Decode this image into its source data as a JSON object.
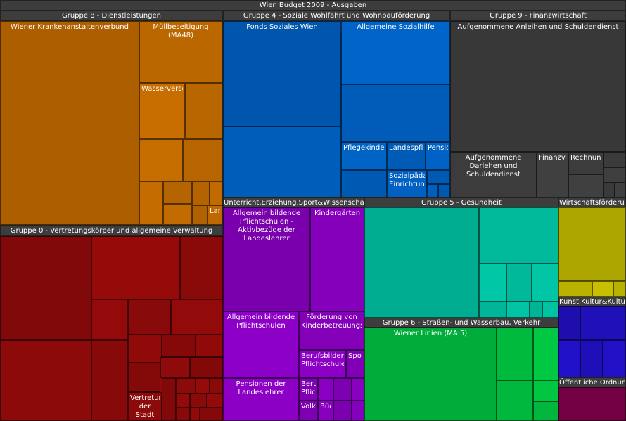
{
  "chart_data": {
    "type": "treemap",
    "title": "Wien Budget 2009 - Ausgaben",
    "groups": [
      {
        "name": "Gruppe 8 - Dienstleistungen",
        "color": "#c06a00",
        "items": [
          {
            "name": "Wiener Krankenanstaltenverbund"
          },
          {
            "name": "Müllbeseitigung (MA48)"
          },
          {
            "name": "Wasserversorgung"
          },
          {
            "name": "Landwirtschaft"
          }
        ]
      },
      {
        "name": "Gruppe 4 - Soziale Wohlfahrt und Wohnbauförderung",
        "color": "#0060c0",
        "items": [
          {
            "name": "Fonds Soziales Wien"
          },
          {
            "name": "Allgemeine Sozialhilfe"
          },
          {
            "name": "Pflegekindereinrichtungen"
          },
          {
            "name": "Landespflegegeld"
          },
          {
            "name": "Pensionen"
          },
          {
            "name": "Sozialpädagogische Einrichtungen"
          }
        ]
      },
      {
        "name": "Gruppe 9 - Finanzwirtschaft",
        "color": "#3e3e3e",
        "items": [
          {
            "name": "Aufgenommene Anleihen und Schuldendienst"
          },
          {
            "name": "Aufgenommene Darlehen und Schuldendienst"
          },
          {
            "name": "Finanzverwaltung"
          },
          {
            "name": "Rechnungsabschluss"
          }
        ]
      },
      {
        "name": "Gruppe 0 - Vertretungskörper und allgemeine Verwaltung",
        "color": "#900a0a",
        "items": [
          {
            "name": "Vertretungskörper der Stadt"
          }
        ]
      },
      {
        "name": "Unterricht,Erziehung,Sport&Wissenschaft",
        "color": "#8800c0",
        "items": [
          {
            "name": "Allgemein bildende Pflichtschulen - Aktivbezüge der Landeslehrer"
          },
          {
            "name": "Kindergärten"
          },
          {
            "name": "Allgemein bildende Pflichtschulen"
          },
          {
            "name": "Förderung von Kinderbetreuungseinrichtungen"
          },
          {
            "name": "Berufsbildende Pflichtschulen"
          },
          {
            "name": "Sport"
          },
          {
            "name": "Pensionen der Landeslehrer"
          },
          {
            "name": "Berufsbildende Pflichtschulen"
          },
          {
            "name": "Volksbildung"
          },
          {
            "name": "Büchereien"
          }
        ]
      },
      {
        "name": "Gruppe 5 - Gesundheit",
        "color": "#00c0a0",
        "items": []
      },
      {
        "name": "Wirtschaftsförderung",
        "color": "#c0b800",
        "items": []
      },
      {
        "name": "Gruppe 6 - Straßen- und Wasserbau, Verkehr",
        "color": "#00c040",
        "items": [
          {
            "name": "Wiener Linien (MA 5)"
          }
        ]
      },
      {
        "name": "Kunst,Kultur&Kultus",
        "color": "#2010c0",
        "items": []
      },
      {
        "name": "Öffentliche Ordnung und Sicherheit",
        "color": "#80004a",
        "items": []
      }
    ]
  }
}
